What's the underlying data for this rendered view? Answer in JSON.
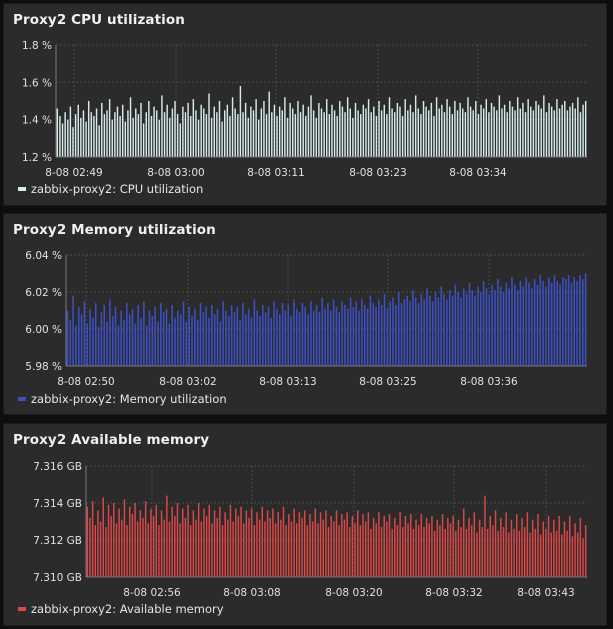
{
  "panels": [
    {
      "title": "Proxy2 CPU utilization",
      "legend": "zabbix-proxy2: CPU utilization",
      "color": "#d6ecec",
      "chart_data": {
        "type": "bar",
        "y_ticks": [
          "1.8 %",
          "1.6 %",
          "1.4 %",
          "1.2 %"
        ],
        "ylim": [
          1.2,
          1.8
        ],
        "x_ticks": [
          "8-08 02:49",
          "8-08 03:00",
          "8-08 03:11",
          "8-08 03:23",
          "8-08 03:34"
        ],
        "series": [
          {
            "name": "zabbix-proxy2: CPU utilization",
            "values": [
              1.46,
              1.42,
              1.38,
              1.44,
              1.4,
              1.47,
              1.36,
              1.43,
              1.48,
              1.41,
              1.45,
              1.39,
              1.5,
              1.44,
              1.42,
              1.46,
              1.37,
              1.49,
              1.43,
              1.45,
              1.51,
              1.4,
              1.44,
              1.47,
              1.42,
              1.48,
              1.39,
              1.45,
              1.52,
              1.41,
              1.46,
              1.43,
              1.49,
              1.38,
              1.44,
              1.5,
              1.42,
              1.47,
              1.45,
              1.4,
              1.53,
              1.44,
              1.48,
              1.41,
              1.46,
              1.5,
              1.43,
              1.38,
              1.47,
              1.44,
              1.49,
              1.42,
              1.51,
              1.45,
              1.4,
              1.48,
              1.46,
              1.43,
              1.54,
              1.41,
              1.47,
              1.44,
              1.5,
              1.39,
              1.45,
              1.48,
              1.42,
              1.52,
              1.46,
              1.43,
              1.58,
              1.44,
              1.49,
              1.41,
              1.47,
              1.45,
              1.51,
              1.4,
              1.46,
              1.5,
              1.43,
              1.55,
              1.44,
              1.48,
              1.42,
              1.47,
              1.45,
              1.52,
              1.41,
              1.49,
              1.46,
              1.43,
              1.5,
              1.44,
              1.48,
              1.42,
              1.47,
              1.53,
              1.45,
              1.41,
              1.49,
              1.46,
              1.44,
              1.51,
              1.43,
              1.48,
              1.45,
              1.42,
              1.5,
              1.47,
              1.44,
              1.52,
              1.46,
              1.41,
              1.49,
              1.45,
              1.43,
              1.48,
              1.46,
              1.51,
              1.44,
              1.47,
              1.42,
              1.5,
              1.45,
              1.48,
              1.43,
              1.52,
              1.46,
              1.44,
              1.49,
              1.47,
              1.42,
              1.51,
              1.45,
              1.48,
              1.44,
              1.53,
              1.46,
              1.43,
              1.5,
              1.47,
              1.45,
              1.49,
              1.42,
              1.52,
              1.46,
              1.48,
              1.44,
              1.51,
              1.47,
              1.43,
              1.5,
              1.45,
              1.49,
              1.46,
              1.44,
              1.52,
              1.47,
              1.45,
              1.5,
              1.43,
              1.48,
              1.46,
              1.51,
              1.44,
              1.49,
              1.47,
              1.45,
              1.53,
              1.46,
              1.48,
              1.44,
              1.5,
              1.47,
              1.45,
              1.52,
              1.46,
              1.49,
              1.44,
              1.51,
              1.47,
              1.45,
              1.5,
              1.48,
              1.46,
              1.53,
              1.44,
              1.49,
              1.47,
              1.45,
              1.51,
              1.46,
              1.48,
              1.5,
              1.45,
              1.47,
              1.49,
              1.46,
              1.52,
              1.44,
              1.48,
              1.5
            ]
          }
        ]
      }
    },
    {
      "title": "Proxy2 Memory utilization",
      "legend": "zabbix-proxy2: Memory utilization",
      "color": "#3c4fc4",
      "chart_data": {
        "type": "bar",
        "y_ticks": [
          "6.04 %",
          "6.02 %",
          "6.00 %",
          "5.98 %"
        ],
        "ylim": [
          5.98,
          6.04
        ],
        "x_ticks": [
          "8-08 02:50",
          "8-08 03:02",
          "8-08 03:13",
          "8-08 03:25",
          "8-08 03:36"
        ],
        "series": [
          {
            "name": "zabbix-proxy2: Memory utilization",
            "values": [
              6.01,
              6.005,
              6.018,
              6.002,
              6.012,
              6.008,
              6.015,
              6.003,
              6.011,
              6.006,
              6.014,
              6.001,
              6.009,
              6.013,
              6.004,
              6.016,
              6.007,
              6.012,
              6.002,
              6.01,
              6.005,
              6.014,
              6.008,
              6.011,
              6.003,
              6.013,
              6.006,
              6.015,
              6.002,
              6.01,
              6.007,
              6.012,
              6.004,
              6.014,
              6.009,
              6.011,
              6.003,
              6.013,
              6.006,
              6.01,
              6.008,
              6.015,
              6.004,
              6.012,
              6.007,
              6.011,
              6.005,
              6.014,
              6.009,
              6.012,
              6.006,
              6.013,
              6.008,
              6.011,
              6.004,
              6.015,
              6.01,
              6.007,
              6.013,
              6.009,
              6.012,
              6.005,
              6.014,
              6.008,
              6.011,
              6.006,
              6.016,
              6.01,
              6.007,
              6.013,
              6.009,
              6.012,
              6.006,
              6.015,
              6.011,
              6.008,
              6.014,
              6.01,
              6.013,
              6.007,
              6.016,
              6.011,
              6.009,
              6.014,
              6.012,
              6.008,
              6.015,
              6.01,
              6.013,
              6.009,
              6.017,
              6.011,
              6.014,
              6.01,
              6.016,
              6.012,
              6.009,
              6.015,
              6.013,
              6.011,
              6.017,
              6.012,
              6.015,
              6.01,
              6.016,
              6.013,
              6.011,
              6.018,
              6.014,
              6.012,
              6.016,
              6.013,
              6.019,
              6.011,
              6.015,
              6.017,
              6.013,
              6.02,
              6.014,
              6.016,
              6.018,
              6.015,
              6.021,
              6.017,
              6.014,
              6.019,
              6.016,
              6.022,
              6.018,
              6.015,
              6.02,
              6.017,
              6.023,
              6.019,
              6.016,
              6.021,
              6.018,
              6.024,
              6.02,
              6.017,
              6.022,
              6.019,
              6.025,
              6.021,
              6.018,
              6.023,
              6.02,
              6.026,
              6.022,
              6.019,
              6.024,
              6.021,
              6.027,
              6.023,
              6.02,
              6.025,
              6.022,
              6.028,
              6.024,
              6.021,
              6.026,
              6.023,
              6.028,
              6.025,
              6.022,
              6.027,
              6.024,
              6.029,
              6.026,
              6.023,
              6.028,
              6.025,
              6.029,
              6.026,
              6.024,
              6.028,
              6.027,
              6.029,
              6.025,
              6.028,
              6.026,
              6.029,
              6.027,
              6.03
            ]
          }
        ]
      }
    },
    {
      "title": "Proxy2 Available memory",
      "legend": "zabbix-proxy2: Available memory",
      "color": "#dd4747",
      "chart_data": {
        "type": "bar",
        "y_ticks": [
          "7.316 GB",
          "7.314 GB",
          "7.312 GB",
          "7.310 GB"
        ],
        "ylim": [
          7.31,
          7.316
        ],
        "x_ticks": [
          "8-08 02:56",
          "8-08 03:08",
          "8-08 03:20",
          "8-08 03:32",
          "8-08 03:43"
        ],
        "series": [
          {
            "name": "zabbix-proxy2: Available memory",
            "values": [
              7.3138,
              7.3132,
              7.3141,
              7.3128,
              7.3136,
              7.313,
              7.3143,
              7.3127,
              7.3139,
              7.3133,
              7.314,
              7.3129,
              7.3137,
              7.3131,
              7.3142,
              7.3128,
              7.3138,
              7.3134,
              7.314,
              7.313,
              7.3136,
              7.3132,
              7.3141,
              7.3129,
              7.3137,
              7.3133,
              7.3139,
              7.3128,
              7.3136,
              7.3131,
              7.3144,
              7.313,
              7.3138,
              7.3133,
              7.314,
              7.3129,
              7.3137,
              7.3132,
              7.3139,
              7.3128,
              7.3136,
              7.3131,
              7.314,
              7.313,
              7.3137,
              7.3133,
              7.3139,
              7.3129,
              7.3136,
              7.3132,
              7.3138,
              7.3128,
              7.3135,
              7.3131,
              7.3139,
              7.313,
              7.3137,
              7.3133,
              7.3138,
              7.3129,
              7.3136,
              7.3132,
              7.3137,
              7.3128,
              7.3135,
              7.3131,
              7.3138,
              7.313,
              7.3136,
              7.3132,
              7.3137,
              7.3129,
              7.3135,
              7.3131,
              7.3138,
              7.3128,
              7.3134,
              7.313,
              7.3137,
              7.3129,
              7.3135,
              7.3132,
              7.3136,
              7.3128,
              7.3134,
              7.313,
              7.3137,
              7.3129,
              7.3135,
              7.3131,
              7.3136,
              7.3127,
              7.3133,
              7.313,
              7.3136,
              7.3128,
              7.3134,
              7.3131,
              7.3135,
              7.3127,
              7.3133,
              7.3129,
              7.3136,
              7.3128,
              7.3134,
              7.313,
              7.3135,
              7.3126,
              7.3132,
              7.3129,
              7.3135,
              7.3127,
              7.3133,
              7.313,
              7.3134,
              7.3126,
              7.3132,
              7.3128,
              7.3135,
              7.3127,
              7.3133,
              7.3129,
              7.3134,
              7.3126,
              7.3131,
              7.3128,
              7.3134,
              7.3127,
              7.3132,
              7.3129,
              7.3133,
              7.3125,
              7.3131,
              7.3128,
              7.3134,
              7.3126,
              7.3132,
              7.3129,
              7.3133,
              7.3125,
              7.3131,
              7.3127,
              7.3137,
              7.3126,
              7.3132,
              7.3128,
              7.3135,
              7.3124,
              7.3131,
              7.3127,
              7.3144,
              7.3126,
              7.3133,
              7.3128,
              7.3136,
              7.3125,
              7.3132,
              7.3127,
              7.3135,
              7.3124,
              7.3131,
              7.3126,
              7.3134,
              7.3125,
              7.3132,
              7.3127,
              7.3135,
              7.3124,
              7.3131,
              7.3126,
              7.3134,
              7.3123,
              7.313,
              7.3126,
              7.3133,
              7.3124,
              7.3131,
              7.3125,
              7.3133,
              7.3123,
              7.313,
              7.3125,
              7.3133,
              7.3122,
              7.3129,
              7.3124,
              7.3132,
              7.3121,
              7.3128
            ]
          }
        ]
      }
    }
  ]
}
